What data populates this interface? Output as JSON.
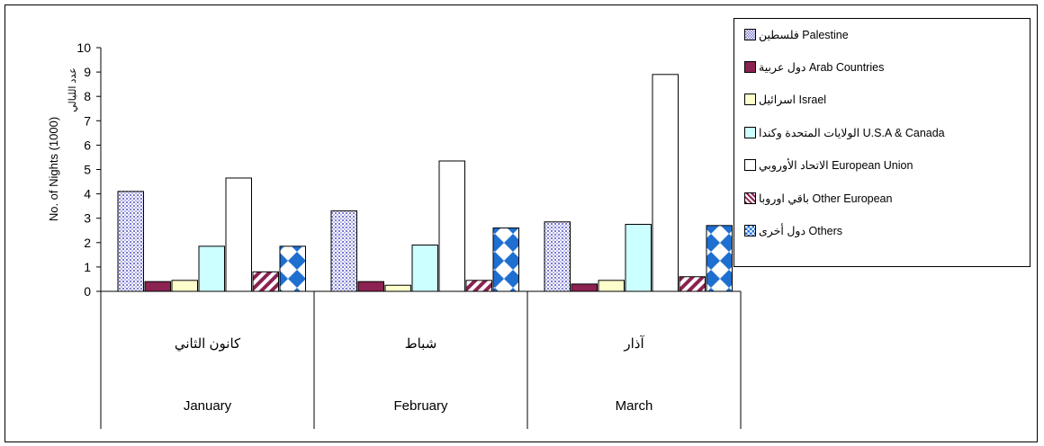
{
  "colors": {
    "palestine": "#d6d6f5",
    "arab": "#8b2252",
    "israel": "#ffffcc",
    "usa": "#ccffff",
    "eu": "#ffffff",
    "other_eu": "#8b2252",
    "others": "#1f6fd1"
  },
  "legend": [
    {
      "label": "فلسطين Palestine",
      "key": "palestine",
      "pattern": "dots"
    },
    {
      "label": "دول عربية Arab Countries",
      "key": "arab",
      "pattern": "solid"
    },
    {
      "label": "اسرائيل Israel",
      "key": "israel",
      "pattern": "solid"
    },
    {
      "label": "الولايات المتحدة وكندا U.S.A & Canada",
      "key": "usa",
      "pattern": "solid"
    },
    {
      "label": "الاتحاد الأوروبي European Union",
      "key": "eu",
      "pattern": "solid"
    },
    {
      "label": "باقي اوروبا Other European",
      "key": "other_eu",
      "pattern": "diag"
    },
    {
      "label": "دول أخرى Others",
      "key": "others",
      "pattern": "check"
    }
  ],
  "chart_data": {
    "type": "bar",
    "categories": [
      "January",
      "February",
      "March"
    ],
    "categories_ar": [
      "كانون الثاني",
      "شباط",
      "آذار"
    ],
    "ylabel": "No. of Nights (1000)",
    "ylabel_ar": "عدد الليالي",
    "ylim": [
      0,
      10
    ],
    "yticks": [
      "0",
      "1",
      "2",
      "3",
      "4",
      "5",
      "6",
      "7",
      "8",
      "9",
      "10"
    ],
    "grid": false,
    "legend_position": "top-right",
    "series": [
      {
        "name": "فلسطين Palestine",
        "values": [
          4.1,
          3.3,
          2.85
        ]
      },
      {
        "name": "دول عربية Arab Countries",
        "values": [
          0.4,
          0.4,
          0.3
        ]
      },
      {
        "name": "اسرائيل Israel",
        "values": [
          0.45,
          0.25,
          0.45
        ]
      },
      {
        "name": "الولايات المتحدة وكندا U.S.A & Canada",
        "values": [
          1.85,
          1.9,
          2.75
        ]
      },
      {
        "name": "الاتحاد الأوروبي European Union",
        "values": [
          4.65,
          5.35,
          8.9
        ]
      },
      {
        "name": "باقي اوروبا Other European",
        "values": [
          0.8,
          0.45,
          0.6
        ]
      },
      {
        "name": "دول أخرى Others",
        "values": [
          1.85,
          2.6,
          2.7
        ]
      }
    ]
  }
}
